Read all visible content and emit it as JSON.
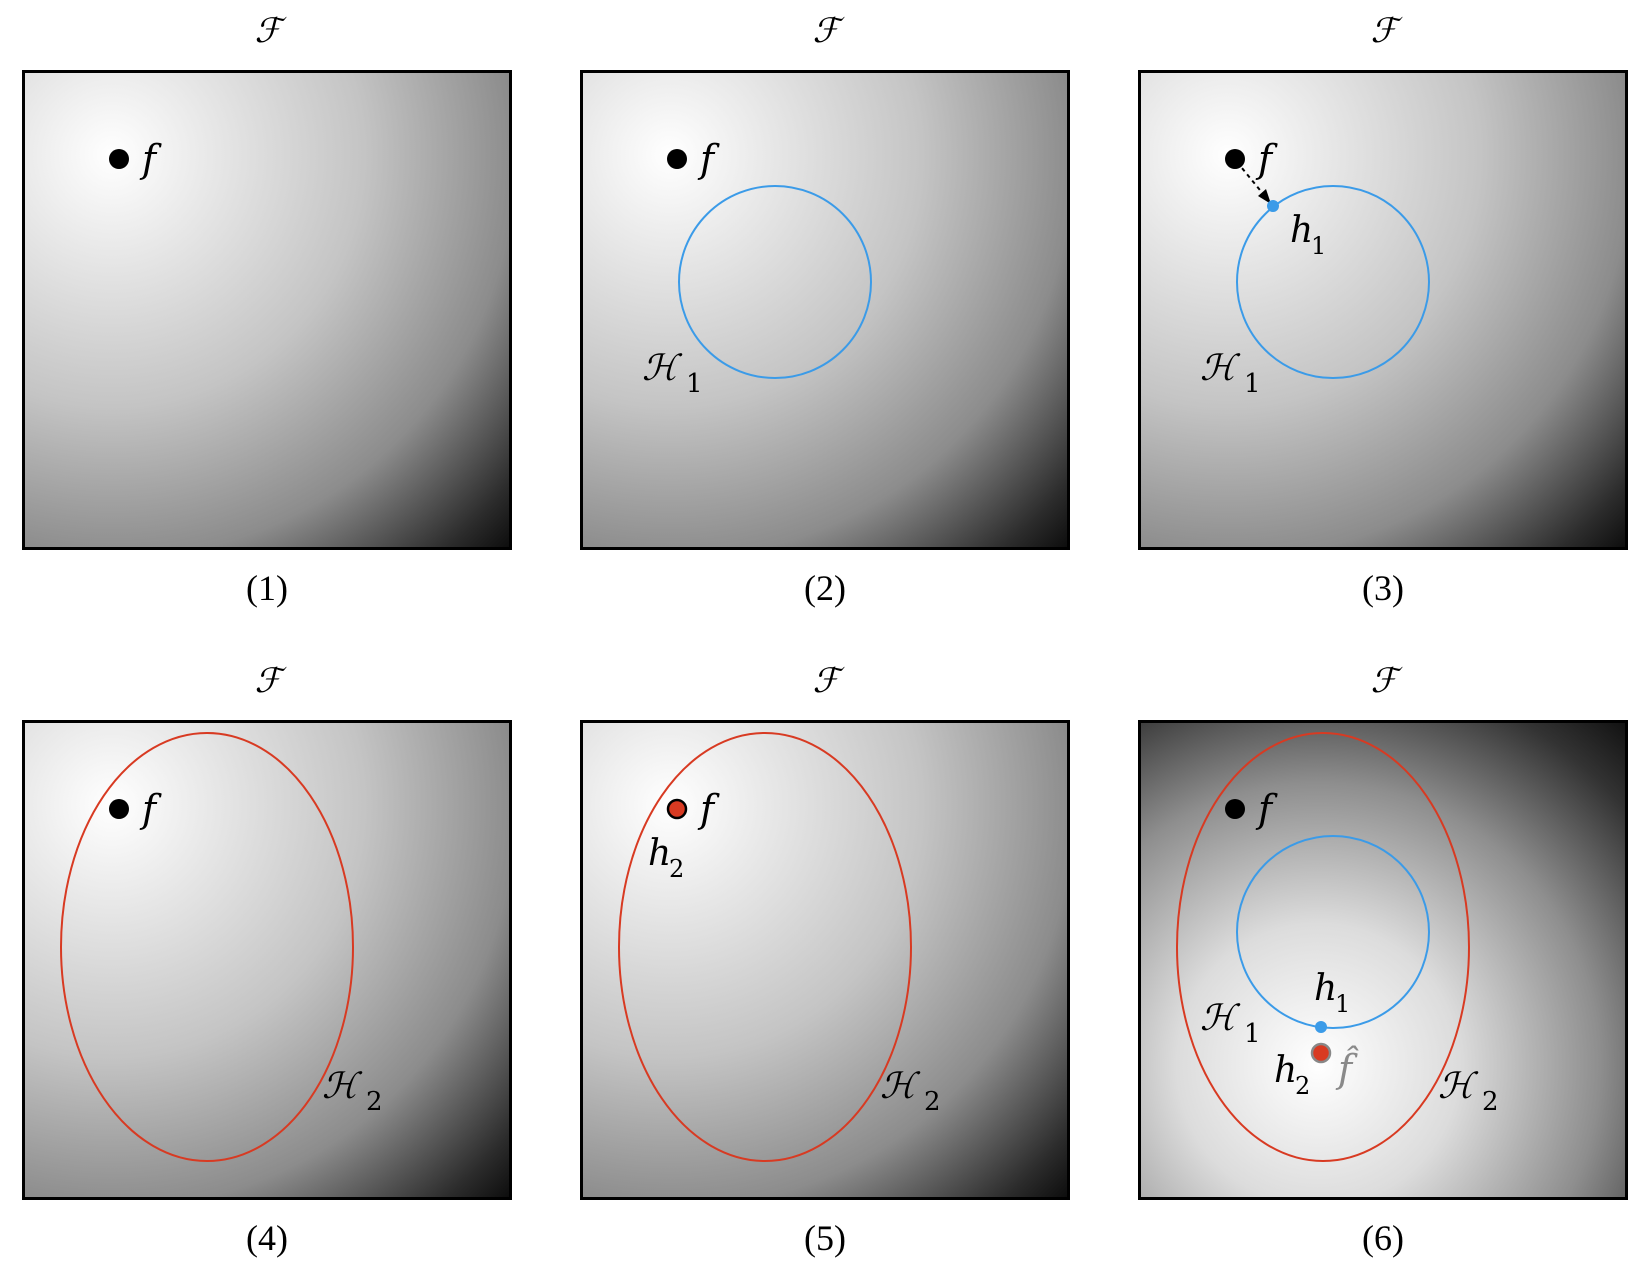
{
  "figure": {
    "panels": [
      {
        "caption": "(1)",
        "space_label": "ℱ",
        "f_label": "f"
      },
      {
        "caption": "(2)",
        "space_label": "ℱ",
        "f_label": "f",
        "h1_set_label": "ℋ",
        "h1_set_sub": "1"
      },
      {
        "caption": "(3)",
        "space_label": "ℱ",
        "f_label": "f",
        "h1_set_label": "ℋ",
        "h1_set_sub": "1",
        "h1_point_label": "h",
        "h1_point_sub": "1"
      },
      {
        "caption": "(4)",
        "space_label": "ℱ",
        "f_label": "f",
        "h2_set_label": "ℋ",
        "h2_set_sub": "2"
      },
      {
        "caption": "(5)",
        "space_label": "ℱ",
        "f_label": "f",
        "h2_set_label": "ℋ",
        "h2_set_sub": "2",
        "h2_point_label": "h",
        "h2_point_sub": "2"
      },
      {
        "caption": "(6)",
        "space_label": "ℱ",
        "f_label": "f",
        "h1_set_label": "ℋ",
        "h1_set_sub": "1",
        "h2_set_label": "ℋ",
        "h2_set_sub": "2",
        "h1_point_label": "h",
        "h1_point_sub": "1",
        "h2_point_label": "h",
        "h2_point_sub": "2",
        "fhat_label": "f̂"
      }
    ],
    "colors": {
      "hypothesis_set_1": "#3b9be8",
      "hypothesis_set_2": "#d83a22",
      "target_point": "#000000",
      "estimate_point": "#888888"
    }
  }
}
